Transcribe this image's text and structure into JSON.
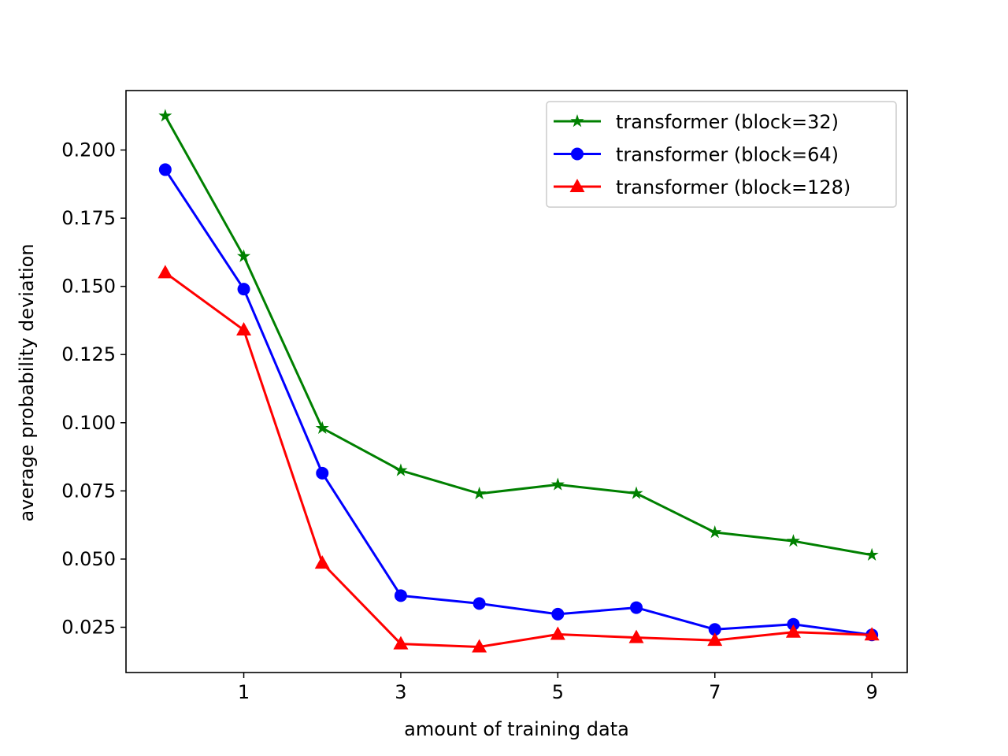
{
  "chart_data": {
    "type": "line",
    "title": "",
    "xlabel": "amount of training data",
    "ylabel": "average probability deviation",
    "xlim": [
      -0.5,
      9.45
    ],
    "ylim": [
      0.0084,
      0.2218
    ],
    "xticks": [
      1,
      3,
      5,
      7,
      9
    ],
    "xtick_labels": [
      "1",
      "3",
      "5",
      "7",
      "9"
    ],
    "yticks": [
      0.025,
      0.05,
      0.075,
      0.1,
      0.125,
      0.15,
      0.175,
      0.2
    ],
    "ytick_labels": [
      "0.025",
      "0.050",
      "0.075",
      "0.100",
      "0.125",
      "0.150",
      "0.175",
      "0.200"
    ],
    "grid": false,
    "legend_position": "top-right",
    "x": [
      0,
      1,
      2,
      3,
      4,
      5,
      6,
      7,
      8,
      9
    ],
    "series": [
      {
        "name": "transformer (block=32)",
        "color": "#008000",
        "marker": "star",
        "values": [
          0.2125,
          0.161,
          0.098,
          0.0825,
          0.074,
          0.0773,
          0.0741,
          0.0598,
          0.0566,
          0.0515
        ]
      },
      {
        "name": "transformer (block=64)",
        "color": "#0000ff",
        "marker": "circle",
        "values": [
          0.1928,
          0.149,
          0.0815,
          0.0366,
          0.0337,
          0.0298,
          0.0322,
          0.0242,
          0.0261,
          0.0222
        ]
      },
      {
        "name": "transformer (block=128)",
        "color": "#ff0000",
        "marker": "triangle",
        "values": [
          0.155,
          0.134,
          0.0485,
          0.0189,
          0.0178,
          0.0224,
          0.0212,
          0.0202,
          0.0232,
          0.0222
        ]
      }
    ]
  }
}
